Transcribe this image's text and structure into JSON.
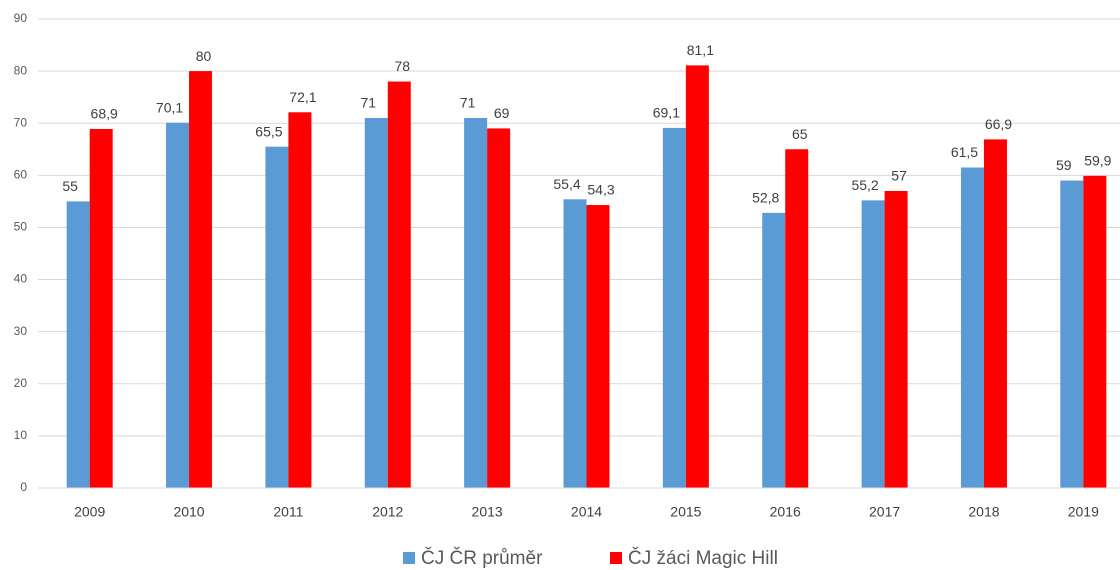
{
  "chart_data": {
    "type": "bar",
    "categories": [
      "2009",
      "2010",
      "2011",
      "2012",
      "2013",
      "2014",
      "2015",
      "2016",
      "2017",
      "2018",
      "2019"
    ],
    "series": [
      {
        "name": "ČJ ČR průměr",
        "color": "#5b9bd5",
        "values": [
          55,
          70.1,
          65.5,
          71,
          71,
          55.4,
          69.1,
          52.8,
          55.2,
          61.5,
          59
        ],
        "value_labels": [
          "55",
          "70,1",
          "65,5",
          "71",
          "71",
          "55,4",
          "69,1",
          "52,8",
          "55,2",
          "61,5",
          "59"
        ]
      },
      {
        "name": "ČJ žáci Magic Hill",
        "color": "#ff0000",
        "values": [
          68.9,
          80,
          72.1,
          78,
          69,
          54.3,
          81.1,
          65,
          57,
          66.9,
          59.9
        ],
        "value_labels": [
          "68,9",
          "80",
          "72,1",
          "78",
          "69",
          "54,3",
          "81,1",
          "65",
          "57",
          "66,9",
          "59,9"
        ]
      }
    ],
    "ylim": [
      0,
      90
    ],
    "yticks": [
      0,
      10,
      20,
      30,
      40,
      50,
      60,
      70,
      80,
      90
    ],
    "grid": true,
    "legend": "bottom"
  }
}
